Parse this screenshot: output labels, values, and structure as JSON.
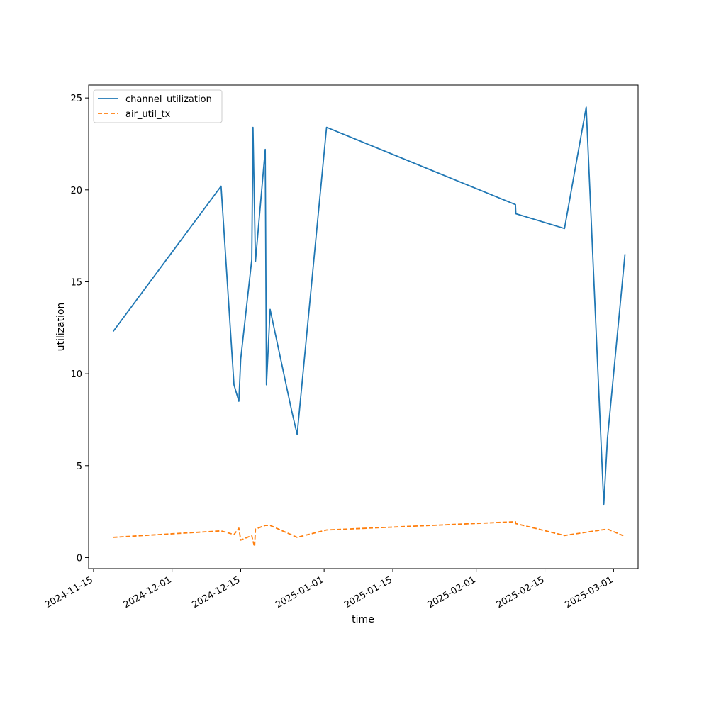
{
  "chart_data": {
    "type": "line",
    "xlabel": "time",
    "ylabel": "utilization",
    "x_axis_type": "date",
    "xlim": [
      "2024-11-14",
      "2025-03-06"
    ],
    "ylim": [
      -0.6,
      25.7
    ],
    "x_ticks": [
      "2024-11-15",
      "2024-12-01",
      "2024-12-15",
      "2025-01-01",
      "2025-01-15",
      "2025-02-01",
      "2025-02-15",
      "2025-03-01"
    ],
    "y_ticks": [
      0,
      5,
      10,
      15,
      20,
      25
    ],
    "grid": false,
    "legend_position": "top-left",
    "series": [
      {
        "name": "channel_utilization",
        "color": "#1f77b4",
        "line_style": "solid",
        "points": [
          [
            "2024-11-19T00:00",
            12.3
          ],
          [
            "2024-12-11T00:00",
            20.2
          ],
          [
            "2024-12-13T15:00",
            9.4
          ],
          [
            "2024-12-14T15:00",
            8.5
          ],
          [
            "2024-12-15T00:00",
            10.8
          ],
          [
            "2024-12-17T06:00",
            16.2
          ],
          [
            "2024-12-17T12:00",
            23.4
          ],
          [
            "2024-12-18T00:00",
            16.1
          ],
          [
            "2024-12-20T00:00",
            22.2
          ],
          [
            "2024-12-20T06:00",
            9.4
          ],
          [
            "2024-12-21T00:00",
            13.5
          ],
          [
            "2024-12-25T09:00",
            8.0
          ],
          [
            "2024-12-26T12:00",
            6.7
          ],
          [
            "2025-01-01T12:00",
            23.4
          ],
          [
            "2025-02-09T00:00",
            19.2
          ],
          [
            "2025-02-09T02:00",
            18.7
          ],
          [
            "2025-02-19T00:00",
            17.9
          ],
          [
            "2025-02-23T10:00",
            24.5
          ],
          [
            "2025-02-27T00:00",
            2.9
          ],
          [
            "2025-02-27T18:00",
            6.5
          ],
          [
            "2025-03-03T08:00",
            16.5
          ]
        ]
      },
      {
        "name": "air_util_tx",
        "color": "#ff7f0e",
        "line_style": "dashed",
        "points": [
          [
            "2024-11-19T00:00",
            1.1
          ],
          [
            "2024-12-11T00:00",
            1.45
          ],
          [
            "2024-12-13T15:00",
            1.25
          ],
          [
            "2024-12-14T15:00",
            1.6
          ],
          [
            "2024-12-15T00:00",
            0.95
          ],
          [
            "2024-12-17T06:00",
            1.2
          ],
          [
            "2024-12-17T12:00",
            0.9
          ],
          [
            "2024-12-17T20:00",
            0.6
          ],
          [
            "2024-12-18T00:00",
            1.55
          ],
          [
            "2024-12-20T00:00",
            1.75
          ],
          [
            "2024-12-21T00:00",
            1.75
          ],
          [
            "2024-12-26T12:00",
            1.1
          ],
          [
            "2025-01-01T12:00",
            1.5
          ],
          [
            "2025-02-09T00:00",
            1.95
          ],
          [
            "2025-02-09T02:00",
            1.85
          ],
          [
            "2025-02-19T00:00",
            1.2
          ],
          [
            "2025-02-27T18:00",
            1.55
          ],
          [
            "2025-03-03T08:00",
            1.15
          ]
        ]
      }
    ]
  }
}
